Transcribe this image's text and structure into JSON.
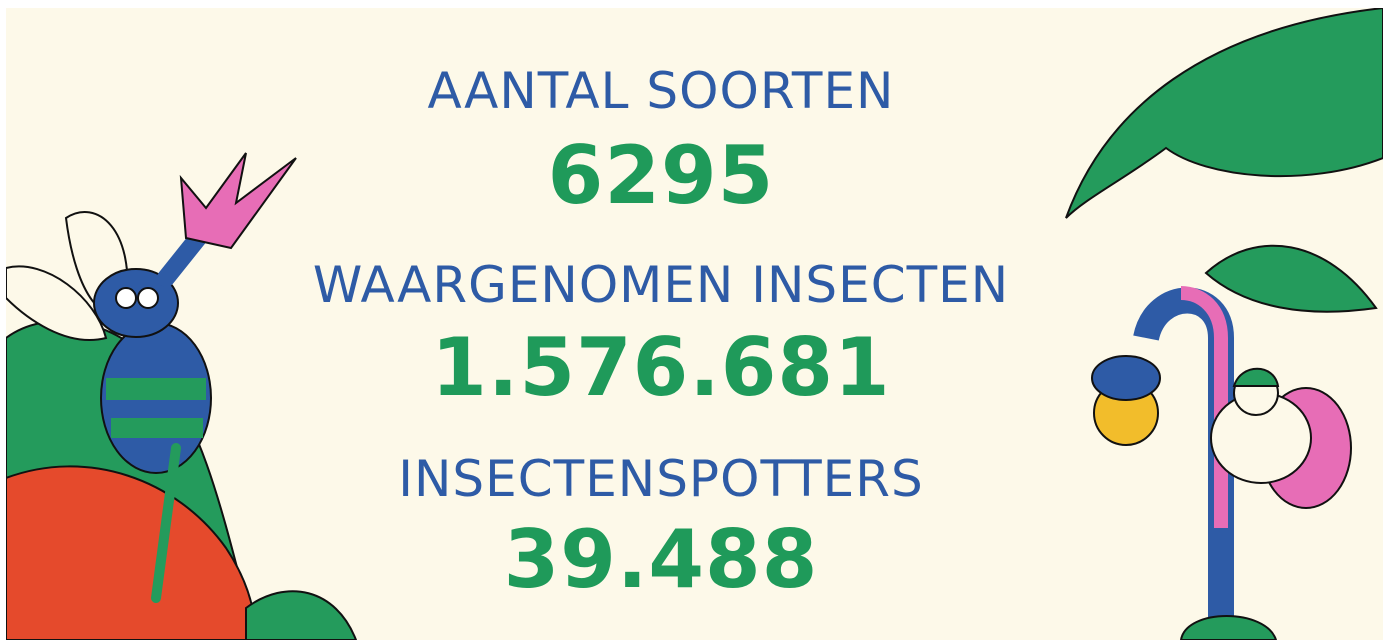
{
  "stats": [
    {
      "label": "AANTAL SOORTEN",
      "value": "6295"
    },
    {
      "label": "WAARGENOMEN INSECTEN",
      "value": "1.576.681"
    },
    {
      "label": "INSECTENSPOTTERS",
      "value": "39.488"
    }
  ]
}
